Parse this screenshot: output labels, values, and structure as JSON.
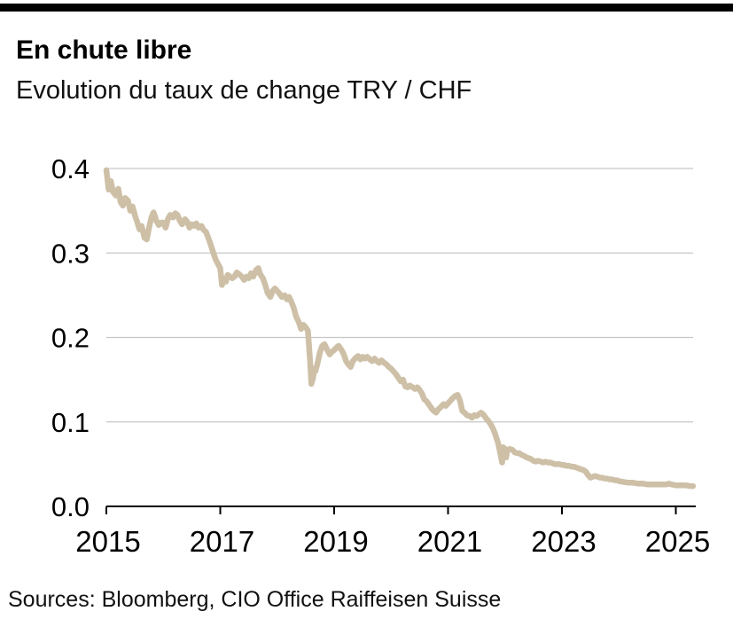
{
  "page": {
    "title": "En chute libre",
    "subtitle": "Evolution du taux de change TRY / CHF",
    "source": "Sources: Bloomberg, CIO Office Raiffeisen Suisse"
  },
  "colors": {
    "line": "#cec0a7",
    "grid": "#c6c6c6",
    "axis": "#000000",
    "top_bar": "#000000",
    "text": "#000000"
  },
  "chart_data": {
    "type": "line",
    "title": "En chute libre",
    "subtitle": "Evolution du taux de change TRY / CHF",
    "xlabel": "",
    "ylabel": "",
    "legend": "none",
    "grid": "horizontal",
    "xlim": [
      2015,
      2025.35
    ],
    "ylim": [
      0,
      0.4
    ],
    "x_ticks": [
      2015,
      2017,
      2019,
      2021,
      2023,
      2025
    ],
    "x_tick_labels": [
      "2015",
      "2017",
      "2019",
      "2021",
      "2023",
      "2025"
    ],
    "y_ticks": [
      0.0,
      0.1,
      0.2,
      0.3,
      0.4
    ],
    "y_tick_labels": [
      "0.0",
      "0.1",
      "0.2",
      "0.3",
      "0.4"
    ],
    "series": [
      {
        "name": "TRY / CHF",
        "points": [
          [
            2015.0,
            0.398
          ],
          [
            2015.04,
            0.375
          ],
          [
            2015.08,
            0.385
          ],
          [
            2015.12,
            0.372
          ],
          [
            2015.17,
            0.368
          ],
          [
            2015.21,
            0.376
          ],
          [
            2015.25,
            0.36
          ],
          [
            2015.29,
            0.356
          ],
          [
            2015.33,
            0.365
          ],
          [
            2015.38,
            0.362
          ],
          [
            2015.42,
            0.35
          ],
          [
            2015.46,
            0.355
          ],
          [
            2015.5,
            0.345
          ],
          [
            2015.54,
            0.337
          ],
          [
            2015.58,
            0.328
          ],
          [
            2015.62,
            0.332
          ],
          [
            2015.67,
            0.318
          ],
          [
            2015.71,
            0.316
          ],
          [
            2015.75,
            0.33
          ],
          [
            2015.79,
            0.342
          ],
          [
            2015.83,
            0.348
          ],
          [
            2015.88,
            0.338
          ],
          [
            2015.92,
            0.333
          ],
          [
            2015.96,
            0.336
          ],
          [
            2016.0,
            0.336
          ],
          [
            2016.04,
            0.33
          ],
          [
            2016.08,
            0.34
          ],
          [
            2016.12,
            0.345
          ],
          [
            2016.17,
            0.342
          ],
          [
            2016.21,
            0.347
          ],
          [
            2016.25,
            0.345
          ],
          [
            2016.29,
            0.338
          ],
          [
            2016.33,
            0.334
          ],
          [
            2016.38,
            0.34
          ],
          [
            2016.42,
            0.337
          ],
          [
            2016.46,
            0.33
          ],
          [
            2016.5,
            0.334
          ],
          [
            2016.54,
            0.332
          ],
          [
            2016.58,
            0.335
          ],
          [
            2016.62,
            0.33
          ],
          [
            2016.67,
            0.332
          ],
          [
            2016.71,
            0.327
          ],
          [
            2016.75,
            0.325
          ],
          [
            2016.79,
            0.318
          ],
          [
            2016.83,
            0.31
          ],
          [
            2016.88,
            0.3
          ],
          [
            2016.92,
            0.292
          ],
          [
            2016.96,
            0.287
          ],
          [
            2017.0,
            0.282
          ],
          [
            2017.03,
            0.262
          ],
          [
            2017.06,
            0.27
          ],
          [
            2017.1,
            0.266
          ],
          [
            2017.13,
            0.274
          ],
          [
            2017.17,
            0.272
          ],
          [
            2017.21,
            0.27
          ],
          [
            2017.25,
            0.272
          ],
          [
            2017.29,
            0.277
          ],
          [
            2017.33,
            0.275
          ],
          [
            2017.38,
            0.272
          ],
          [
            2017.42,
            0.268
          ],
          [
            2017.46,
            0.272
          ],
          [
            2017.5,
            0.27
          ],
          [
            2017.54,
            0.276
          ],
          [
            2017.58,
            0.272
          ],
          [
            2017.63,
            0.28
          ],
          [
            2017.67,
            0.282
          ],
          [
            2017.7,
            0.275
          ],
          [
            2017.75,
            0.27
          ],
          [
            2017.79,
            0.262
          ],
          [
            2017.83,
            0.253
          ],
          [
            2017.88,
            0.248
          ],
          [
            2017.92,
            0.255
          ],
          [
            2017.96,
            0.258
          ],
          [
            2018.0,
            0.255
          ],
          [
            2018.04,
            0.252
          ],
          [
            2018.08,
            0.248
          ],
          [
            2018.13,
            0.25
          ],
          [
            2018.17,
            0.245
          ],
          [
            2018.21,
            0.248
          ],
          [
            2018.25,
            0.242
          ],
          [
            2018.29,
            0.235
          ],
          [
            2018.33,
            0.225
          ],
          [
            2018.38,
            0.218
          ],
          [
            2018.42,
            0.21
          ],
          [
            2018.46,
            0.215
          ],
          [
            2018.5,
            0.212
          ],
          [
            2018.54,
            0.208
          ],
          [
            2018.58,
            0.17
          ],
          [
            2018.6,
            0.145
          ],
          [
            2018.63,
            0.152
          ],
          [
            2018.65,
            0.163
          ],
          [
            2018.67,
            0.16
          ],
          [
            2018.71,
            0.17
          ],
          [
            2018.75,
            0.182
          ],
          [
            2018.79,
            0.19
          ],
          [
            2018.83,
            0.192
          ],
          [
            2018.88,
            0.185
          ],
          [
            2018.92,
            0.18
          ],
          [
            2018.96,
            0.183
          ],
          [
            2019.0,
            0.185
          ],
          [
            2019.04,
            0.188
          ],
          [
            2019.08,
            0.19
          ],
          [
            2019.13,
            0.185
          ],
          [
            2019.17,
            0.18
          ],
          [
            2019.21,
            0.172
          ],
          [
            2019.25,
            0.168
          ],
          [
            2019.29,
            0.165
          ],
          [
            2019.33,
            0.172
          ],
          [
            2019.38,
            0.176
          ],
          [
            2019.42,
            0.178
          ],
          [
            2019.46,
            0.174
          ],
          [
            2019.5,
            0.177
          ],
          [
            2019.54,
            0.175
          ],
          [
            2019.58,
            0.177
          ],
          [
            2019.63,
            0.174
          ],
          [
            2019.67,
            0.172
          ],
          [
            2019.71,
            0.175
          ],
          [
            2019.75,
            0.172
          ],
          [
            2019.79,
            0.17
          ],
          [
            2019.83,
            0.173
          ],
          [
            2019.88,
            0.17
          ],
          [
            2019.92,
            0.168
          ],
          [
            2019.96,
            0.165
          ],
          [
            2020.0,
            0.163
          ],
          [
            2020.04,
            0.16
          ],
          [
            2020.08,
            0.157
          ],
          [
            2020.13,
            0.152
          ],
          [
            2020.17,
            0.148
          ],
          [
            2020.21,
            0.15
          ],
          [
            2020.25,
            0.142
          ],
          [
            2020.29,
            0.141
          ],
          [
            2020.33,
            0.143
          ],
          [
            2020.38,
            0.141
          ],
          [
            2020.42,
            0.139
          ],
          [
            2020.46,
            0.141
          ],
          [
            2020.5,
            0.138
          ],
          [
            2020.54,
            0.134
          ],
          [
            2020.58,
            0.127
          ],
          [
            2020.63,
            0.124
          ],
          [
            2020.67,
            0.12
          ],
          [
            2020.71,
            0.116
          ],
          [
            2020.75,
            0.113
          ],
          [
            2020.79,
            0.111
          ],
          [
            2020.83,
            0.115
          ],
          [
            2020.88,
            0.118
          ],
          [
            2020.92,
            0.121
          ],
          [
            2020.96,
            0.119
          ],
          [
            2021.0,
            0.122
          ],
          [
            2021.04,
            0.125
          ],
          [
            2021.08,
            0.128
          ],
          [
            2021.13,
            0.131
          ],
          [
            2021.17,
            0.132
          ],
          [
            2021.21,
            0.125
          ],
          [
            2021.25,
            0.113
          ],
          [
            2021.29,
            0.111
          ],
          [
            2021.33,
            0.108
          ],
          [
            2021.38,
            0.107
          ],
          [
            2021.42,
            0.105
          ],
          [
            2021.46,
            0.108
          ],
          [
            2021.5,
            0.107
          ],
          [
            2021.54,
            0.109
          ],
          [
            2021.58,
            0.111
          ],
          [
            2021.63,
            0.108
          ],
          [
            2021.67,
            0.104
          ],
          [
            2021.71,
            0.101
          ],
          [
            2021.75,
            0.097
          ],
          [
            2021.79,
            0.092
          ],
          [
            2021.83,
            0.085
          ],
          [
            2021.88,
            0.075
          ],
          [
            2021.92,
            0.062
          ],
          [
            2021.95,
            0.052
          ],
          [
            2021.97,
            0.07
          ],
          [
            2022.0,
            0.068
          ],
          [
            2022.02,
            0.058
          ],
          [
            2022.04,
            0.066
          ],
          [
            2022.08,
            0.068
          ],
          [
            2022.13,
            0.067
          ],
          [
            2022.17,
            0.064
          ],
          [
            2022.21,
            0.063
          ],
          [
            2022.25,
            0.063
          ],
          [
            2022.29,
            0.061
          ],
          [
            2022.33,
            0.06
          ],
          [
            2022.38,
            0.058
          ],
          [
            2022.42,
            0.057
          ],
          [
            2022.46,
            0.056
          ],
          [
            2022.5,
            0.054
          ],
          [
            2022.54,
            0.053
          ],
          [
            2022.58,
            0.054
          ],
          [
            2022.63,
            0.053
          ],
          [
            2022.67,
            0.052
          ],
          [
            2022.71,
            0.053
          ],
          [
            2022.75,
            0.052
          ],
          [
            2022.79,
            0.052
          ],
          [
            2022.83,
            0.051
          ],
          [
            2022.88,
            0.05
          ],
          [
            2022.92,
            0.05
          ],
          [
            2022.96,
            0.05
          ],
          [
            2023.0,
            0.049
          ],
          [
            2023.04,
            0.049
          ],
          [
            2023.08,
            0.048
          ],
          [
            2023.13,
            0.048
          ],
          [
            2023.17,
            0.047
          ],
          [
            2023.21,
            0.047
          ],
          [
            2023.25,
            0.046
          ],
          [
            2023.29,
            0.045
          ],
          [
            2023.33,
            0.044
          ],
          [
            2023.38,
            0.043
          ],
          [
            2023.42,
            0.041
          ],
          [
            2023.46,
            0.037
          ],
          [
            2023.5,
            0.034
          ],
          [
            2023.54,
            0.035
          ],
          [
            2023.58,
            0.036
          ],
          [
            2023.63,
            0.035
          ],
          [
            2023.67,
            0.034
          ],
          [
            2023.71,
            0.034
          ],
          [
            2023.75,
            0.033
          ],
          [
            2023.79,
            0.033
          ],
          [
            2023.83,
            0.032
          ],
          [
            2023.88,
            0.032
          ],
          [
            2023.92,
            0.031
          ],
          [
            2023.96,
            0.031
          ],
          [
            2024.0,
            0.03
          ],
          [
            2024.08,
            0.029
          ],
          [
            2024.17,
            0.028
          ],
          [
            2024.25,
            0.028
          ],
          [
            2024.33,
            0.027
          ],
          [
            2024.42,
            0.027
          ],
          [
            2024.5,
            0.026
          ],
          [
            2024.58,
            0.026
          ],
          [
            2024.67,
            0.026
          ],
          [
            2024.75,
            0.026
          ],
          [
            2024.83,
            0.026
          ],
          [
            2024.88,
            0.027
          ],
          [
            2024.92,
            0.026
          ],
          [
            2025.0,
            0.025
          ],
          [
            2025.08,
            0.025
          ],
          [
            2025.17,
            0.025
          ],
          [
            2025.25,
            0.024
          ],
          [
            2025.3,
            0.024
          ]
        ]
      }
    ]
  }
}
